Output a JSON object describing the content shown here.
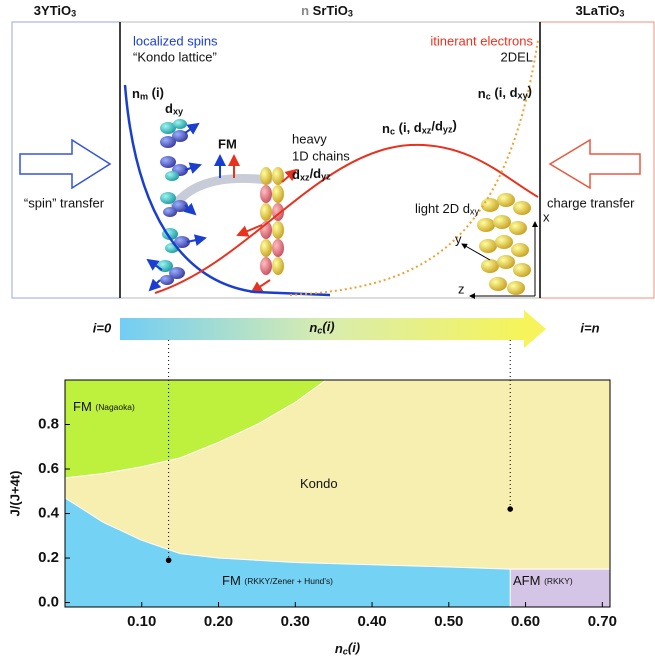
{
  "schematic": {
    "left_title": [
      {
        "text": "3YTiO"
      },
      {
        "sub": "3"
      }
    ],
    "center_title": [
      {
        "text": "n"
      },
      {
        "text": " SrTiO"
      },
      {
        "sub": "3"
      }
    ],
    "right_title": [
      {
        "text": "3LaTiO"
      },
      {
        "sub": "3"
      }
    ],
    "localized": "localized spins",
    "kondo_lattice": "“Kondo lattice”",
    "itinerant": "itinerant electrons",
    "twodel": "2DEL",
    "nm": [
      {
        "text": "n"
      },
      {
        "sub": "m"
      },
      {
        "text": " (i)"
      }
    ],
    "dxy_left": [
      {
        "text": "d"
      },
      {
        "sub": "xy"
      }
    ],
    "fm": "FM",
    "heavy": "heavy",
    "chains": "1D chains",
    "dxz": [
      {
        "text": "d"
      },
      {
        "sub": "xz"
      },
      {
        "text": "/d"
      },
      {
        "sub": "yz"
      }
    ],
    "nc_xz": [
      {
        "text": "n"
      },
      {
        "sub": "c"
      },
      {
        "text": " (i, d"
      },
      {
        "sub": "xz"
      },
      {
        "text": "/d"
      },
      {
        "sub": "yz"
      },
      {
        "text": ")"
      }
    ],
    "nc_xy": [
      {
        "text": "n"
      },
      {
        "sub": "c"
      },
      {
        "text": " (i, d"
      },
      {
        "sub": "xy"
      },
      {
        "text": ")"
      }
    ],
    "light": [
      {
        "text": "light 2D  d"
      },
      {
        "sub": "xy"
      }
    ],
    "axis_x": "x",
    "axis_y": "y",
    "axis_z": "z",
    "spin_transfer": "“spin” transfer",
    "charge_transfer": "charge transfer",
    "i0": "i=0",
    "nc_bar": [
      {
        "text": "n"
      },
      {
        "sub": "c"
      },
      {
        "text": "(i)"
      }
    ],
    "in": "i=n"
  },
  "chart_data": {
    "type": "phase",
    "xlabel": [
      {
        "text": "n"
      },
      {
        "sub": "c"
      },
      {
        "text": "(i)"
      }
    ],
    "ylabel": "J/(J+4t)",
    "xlim": [
      0,
      0.71
    ],
    "ylim": [
      -0.02,
      1.0
    ],
    "xticks": [
      {
        "value": 0.1,
        "label": "0.10"
      },
      {
        "value": 0.2,
        "label": "0.20"
      },
      {
        "value": 0.3,
        "label": "0.30"
      },
      {
        "value": 0.4,
        "label": "0.40"
      },
      {
        "value": 0.5,
        "label": "0.50"
      },
      {
        "value": 0.6,
        "label": "0.60"
      },
      {
        "value": 0.7,
        "label": "0.70"
      }
    ],
    "yticks": [
      {
        "value": 0,
        "label": "0.0"
      },
      0.2,
      0.4,
      0.6,
      0.8
    ],
    "background": {
      "label": [
        {
          "text": "Kondo"
        }
      ],
      "color": "#f7efb0"
    },
    "regions": [
      {
        "label": [
          {
            "text": "FM "
          },
          {
            "small": "(Nagaoka)"
          }
        ],
        "color": "#bef03e",
        "fill": "above",
        "x": [
          0,
          0.05,
          0.1,
          0.15,
          0.2,
          0.25,
          0.3,
          0.34
        ],
        "values": [
          0.56,
          0.58,
          0.61,
          0.65,
          0.72,
          0.8,
          0.9,
          1.0
        ]
      },
      {
        "label": [
          {
            "text": "FM "
          },
          {
            "small": "(RKKY/Zener + Hund's)"
          }
        ],
        "color": "#74d3f5",
        "fill": "below",
        "x": [
          0,
          0.05,
          0.1,
          0.15,
          0.2,
          0.3,
          0.4,
          0.5,
          0.58,
          0.71
        ],
        "values": [
          0.47,
          0.36,
          0.28,
          0.22,
          0.2,
          0.18,
          0.17,
          0.16,
          0.15,
          0.15
        ]
      },
      {
        "label": [
          {
            "text": "AFM "
          },
          {
            "small": "(RKKY)"
          }
        ],
        "color": "#d4c4e6",
        "fill": "below",
        "x": [
          0.58,
          0.71
        ],
        "values": [
          0.15,
          0.15
        ]
      }
    ],
    "points": {
      "x": [
        0.135,
        0.58
      ],
      "values": [
        0.19,
        0.42
      ]
    }
  }
}
